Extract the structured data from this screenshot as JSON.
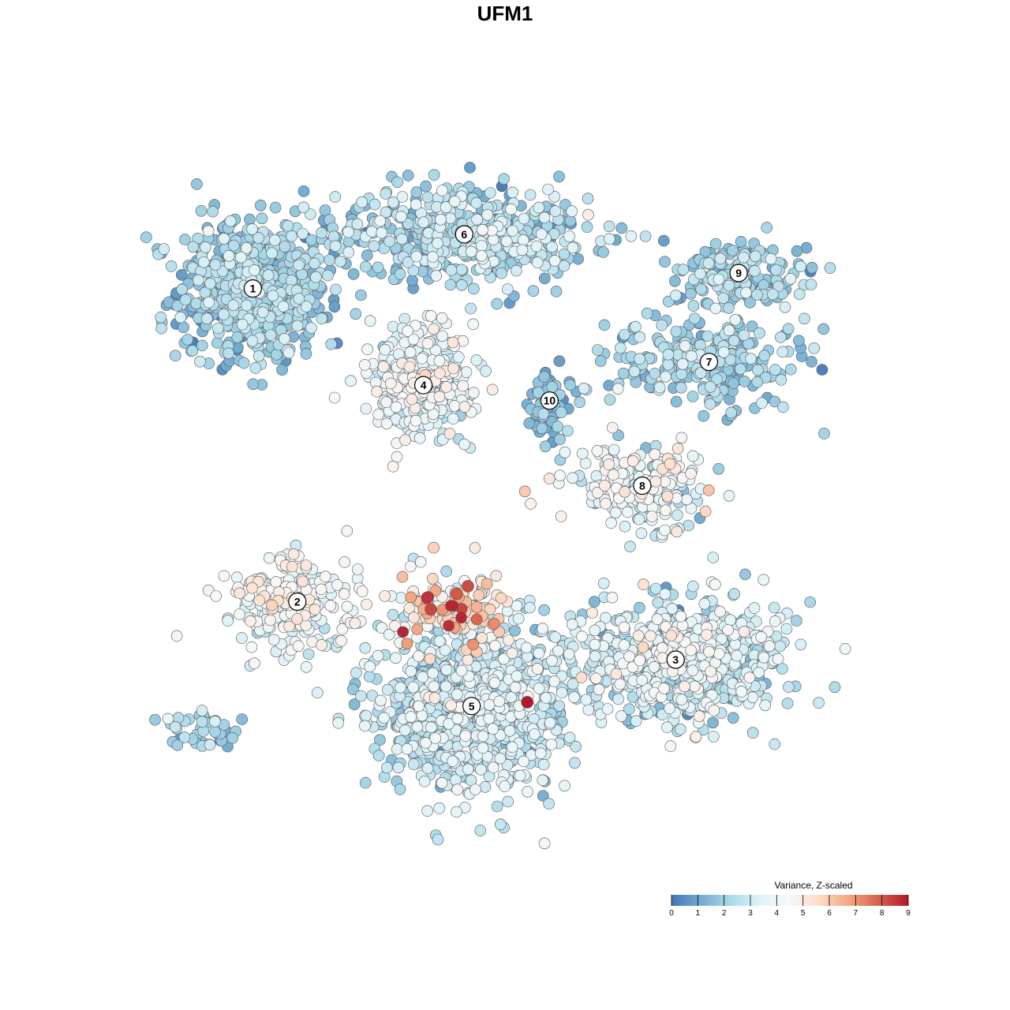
{
  "chart_data": {
    "type": "scatter",
    "title": "UFM1",
    "xlabel": "",
    "ylabel": "",
    "grid": false,
    "legend": {
      "title": "Variance, Z-scaled",
      "placement": "bottom-right",
      "ticks": [
        "0",
        "1",
        "2",
        "3",
        "4",
        "5",
        "6",
        "7",
        "8",
        "9"
      ],
      "range": [
        0,
        9
      ],
      "colors": [
        "#4575b4",
        "#74add1",
        "#abd9e9",
        "#e0f3f8",
        "#f7f7f7",
        "#fddbc7",
        "#f4a582",
        "#d6604d",
        "#b2182b"
      ]
    },
    "clusters": [
      {
        "label": "1",
        "x": -0.68,
        "y": 0.56,
        "sx": 0.1,
        "sy": 0.09,
        "n": 700,
        "mean": 1.9,
        "sd": 0.65
      },
      {
        "label": "6",
        "x": -0.11,
        "y": 0.7,
        "sx": 0.17,
        "sy": 0.06,
        "n": 520,
        "mean": 2.3,
        "sd": 0.8
      },
      {
        "label": "9",
        "x": 0.63,
        "y": 0.6,
        "sx": 0.1,
        "sy": 0.045,
        "n": 180,
        "mean": 2.0,
        "sd": 0.6
      },
      {
        "label": "7",
        "x": 0.55,
        "y": 0.37,
        "sx": 0.13,
        "sy": 0.06,
        "n": 260,
        "mean": 2.0,
        "sd": 0.6
      },
      {
        "label": "4",
        "x": -0.22,
        "y": 0.31,
        "sx": 0.07,
        "sy": 0.07,
        "n": 360,
        "mean": 3.6,
        "sd": 0.7
      },
      {
        "label": "10",
        "x": 0.12,
        "y": 0.27,
        "sx": 0.03,
        "sy": 0.04,
        "n": 70,
        "mean": 1.4,
        "sd": 0.5
      },
      {
        "label": "8",
        "x": 0.37,
        "y": 0.05,
        "sx": 0.09,
        "sy": 0.05,
        "n": 220,
        "mean": 3.6,
        "sd": 0.9
      },
      {
        "label": "2",
        "x": -0.56,
        "y": -0.25,
        "sx": 0.09,
        "sy": 0.06,
        "n": 230,
        "mean": 3.9,
        "sd": 0.7
      },
      {
        "label": "3",
        "x": 0.46,
        "y": -0.4,
        "sx": 0.14,
        "sy": 0.08,
        "n": 700,
        "mean": 3.0,
        "sd": 0.9
      },
      {
        "label": "5",
        "x": -0.09,
        "y": -0.52,
        "sx": 0.13,
        "sy": 0.11,
        "n": 850,
        "mean": 2.8,
        "sd": 0.75
      },
      {
        "label": "",
        "x": -0.14,
        "y": -0.27,
        "sx": 0.07,
        "sy": 0.05,
        "n": 140,
        "mean": 5.2,
        "sd": 1.2
      },
      {
        "label": "",
        "x": -0.8,
        "y": -0.58,
        "sx": 0.05,
        "sy": 0.025,
        "n": 40,
        "mean": 2.0,
        "sd": 0.6
      }
    ],
    "highlights": [
      {
        "x": -0.21,
        "y": -0.24,
        "value": 8.6
      },
      {
        "x": -0.2,
        "y": -0.27,
        "value": 8.3
      },
      {
        "x": -0.13,
        "y": -0.23,
        "value": 8.0
      },
      {
        "x": -0.1,
        "y": -0.21,
        "value": 8.2
      },
      {
        "x": 0.06,
        "y": -0.51,
        "value": 9.0
      }
    ]
  }
}
